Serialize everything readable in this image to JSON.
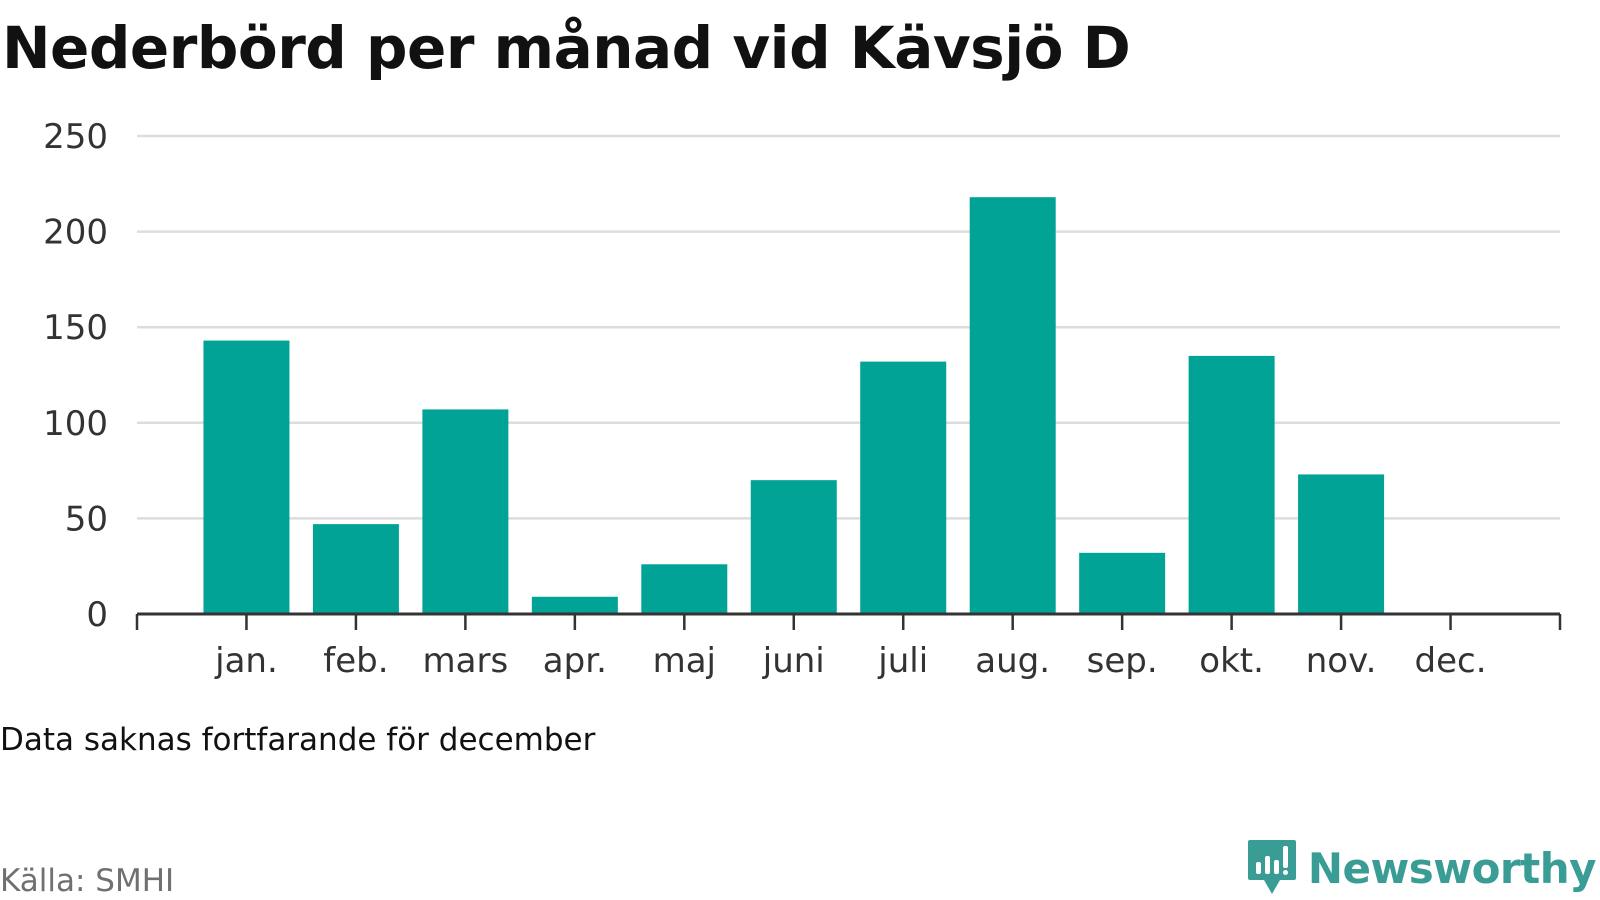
{
  "chart_data": {
    "type": "bar",
    "title": "Nederbörd per månad vid Kävsjö D",
    "categories": [
      "jan.",
      "feb.",
      "mars",
      "apr.",
      "maj",
      "juni",
      "juli",
      "aug.",
      "sep.",
      "okt.",
      "nov.",
      "dec."
    ],
    "values": [
      143,
      47,
      107,
      9,
      26,
      70,
      132,
      218,
      32,
      135,
      73,
      null
    ],
    "ylim": [
      0,
      250
    ],
    "yticks": [
      0,
      50,
      100,
      150,
      200,
      250
    ],
    "grid": true,
    "bar_color": "#00a396",
    "xlabel": "",
    "ylabel": ""
  },
  "note": "Data saknas fortfarande för december",
  "source": "Källa: SMHI",
  "brand": {
    "name": "Newsworthy",
    "icon": "newsworthy-logo-icon",
    "color": "#3a9d95"
  }
}
